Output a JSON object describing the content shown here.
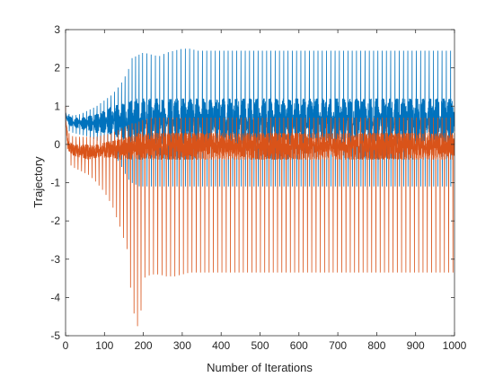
{
  "chart_data": {
    "type": "line",
    "title": "",
    "xlabel": "Number of Iterations",
    "ylabel": "Trajectory",
    "xlim": [
      0,
      1000
    ],
    "ylim": [
      -5,
      3
    ],
    "x_ticks": [
      0,
      100,
      200,
      300,
      400,
      500,
      600,
      700,
      800,
      900,
      1000
    ],
    "y_ticks": [
      -5,
      -4,
      -3,
      -2,
      -1,
      0,
      1,
      2,
      3
    ],
    "grid": false,
    "box": true,
    "series": [
      {
        "color": "#0072BD",
        "x": [
          0,
          4,
          8,
          20,
          40,
          60,
          80,
          100,
          120,
          140,
          160,
          170,
          180,
          190,
          200,
          220,
          240,
          260,
          280,
          300,
          320,
          340,
          360,
          400,
          450,
          500,
          550,
          600,
          650,
          700,
          750,
          800,
          850,
          900,
          950,
          1000
        ],
        "peaks": [
          1.0,
          0.95,
          0.8,
          0.75,
          0.8,
          0.9,
          1.0,
          1.15,
          1.3,
          1.55,
          1.9,
          2.25,
          2.3,
          2.35,
          2.4,
          2.35,
          2.3,
          2.4,
          2.45,
          2.5,
          2.5,
          2.45,
          2.45,
          2.45,
          2.45,
          2.45,
          2.45,
          2.45,
          2.45,
          2.45,
          2.45,
          2.45,
          2.45,
          2.45,
          2.45,
          2.45
        ],
        "troughs": [
          0.6,
          0.4,
          0.35,
          0.3,
          0.25,
          0.2,
          0.1,
          0.0,
          -0.2,
          -0.5,
          -0.9,
          -1.0,
          -1.05,
          -1.1,
          -1.1,
          -1.1,
          -1.1,
          -1.1,
          -1.1,
          -1.1,
          -1.1,
          -1.1,
          -1.1,
          -1.1,
          -1.1,
          -1.1,
          -1.1,
          -1.1,
          -1.1,
          -1.1,
          -1.1,
          -1.1,
          -1.1,
          -1.1,
          -1.1,
          -1.1
        ],
        "band_high": [
          0.9,
          0.85,
          0.75,
          0.7,
          0.7,
          0.75,
          0.8,
          0.9,
          1.0,
          1.05,
          1.1,
          1.15,
          1.2,
          1.2,
          1.2,
          1.2,
          1.2,
          1.2,
          1.2,
          1.2,
          1.2,
          1.2,
          1.2,
          1.2,
          1.2,
          1.2,
          1.2,
          1.2,
          1.2,
          1.2,
          1.2,
          1.2,
          1.2,
          1.2,
          1.2,
          1.2
        ],
        "band_low": [
          0.7,
          0.55,
          0.5,
          0.45,
          0.4,
          0.35,
          0.3,
          0.3,
          0.25,
          0.15,
          0.05,
          0.0,
          0.0,
          0.0,
          0.0,
          0.0,
          0.0,
          0.0,
          0.0,
          0.0,
          0.0,
          0.0,
          0.0,
          0.0,
          0.0,
          0.0,
          0.0,
          0.0,
          0.0,
          0.0,
          0.0,
          0.0,
          0.0,
          0.0,
          0.0,
          0.0
        ]
      },
      {
        "color": "#D95319",
        "x": [
          0,
          4,
          8,
          20,
          40,
          60,
          80,
          100,
          120,
          140,
          160,
          170,
          180,
          190,
          200,
          220,
          240,
          260,
          280,
          300,
          320,
          340,
          360,
          400,
          450,
          500,
          550,
          600,
          650,
          700,
          750,
          800,
          850,
          900,
          950,
          1000
        ],
        "peaks": [
          1.0,
          0.9,
          0.3,
          0.2,
          0.2,
          0.2,
          0.2,
          0.25,
          0.3,
          0.4,
          0.5,
          0.55,
          0.55,
          0.6,
          0.65,
          0.7,
          0.7,
          0.7,
          0.7,
          0.7,
          0.7,
          0.7,
          0.7,
          0.7,
          0.7,
          0.7,
          0.7,
          0.7,
          0.7,
          0.7,
          0.7,
          0.7,
          0.7,
          0.7,
          0.7,
          0.7
        ],
        "troughs": [
          0.6,
          0.0,
          -0.5,
          -0.6,
          -0.7,
          -0.8,
          -1.0,
          -1.25,
          -1.6,
          -2.15,
          -2.8,
          -4.15,
          -4.6,
          -4.9,
          -3.5,
          -3.4,
          -3.4,
          -3.45,
          -3.45,
          -3.4,
          -3.35,
          -3.35,
          -3.35,
          -3.35,
          -3.35,
          -3.35,
          -3.35,
          -3.35,
          -3.35,
          -3.35,
          -3.35,
          -3.35,
          -3.35,
          -3.35,
          -3.35,
          -3.35
        ],
        "band_high": [
          0.8,
          0.4,
          0.1,
          0.0,
          0.0,
          0.0,
          0.0,
          0.05,
          0.1,
          0.15,
          0.2,
          0.25,
          0.3,
          0.3,
          0.3,
          0.3,
          0.3,
          0.3,
          0.3,
          0.3,
          0.3,
          0.3,
          0.3,
          0.3,
          0.3,
          0.3,
          0.3,
          0.3,
          0.3,
          0.3,
          0.3,
          0.3,
          0.3,
          0.3,
          0.3,
          0.3
        ],
        "band_low": [
          0.6,
          0.1,
          -0.2,
          -0.3,
          -0.35,
          -0.4,
          -0.35,
          -0.35,
          -0.35,
          -0.4,
          -0.4,
          -0.4,
          -0.4,
          -0.4,
          -0.4,
          -0.4,
          -0.4,
          -0.4,
          -0.4,
          -0.4,
          -0.4,
          -0.4,
          -0.4,
          -0.4,
          -0.4,
          -0.4,
          -0.4,
          -0.4,
          -0.4,
          -0.4,
          -0.4,
          -0.4,
          -0.4,
          -0.4,
          -0.4,
          -0.4
        ]
      }
    ]
  }
}
